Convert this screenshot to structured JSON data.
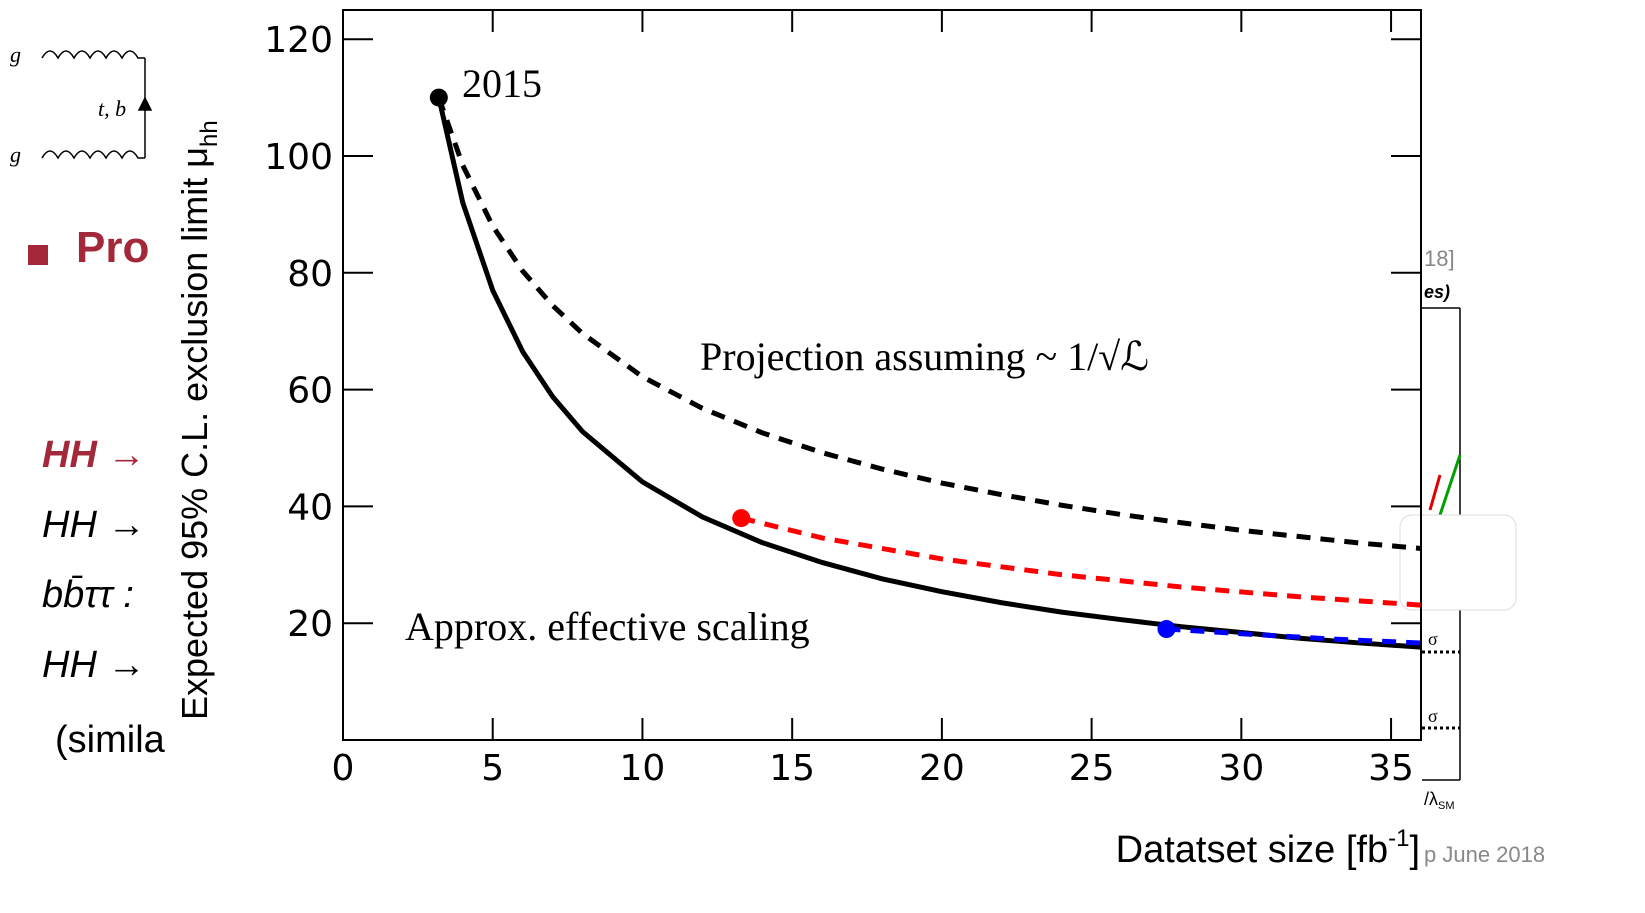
{
  "chart_data": {
    "type": "line",
    "x_label": {
      "text": "Datatset size [fb",
      "sup": "-1",
      "end": "]"
    },
    "y_label": {
      "text": "Expected 95% C.L. exclusion limit μ",
      "sub": "hh"
    },
    "xlim": [
      0,
      36
    ],
    "ylim": [
      0,
      125
    ],
    "xticks": [
      0,
      5,
      10,
      15,
      20,
      25,
      30,
      35
    ],
    "yticks": [
      20,
      40,
      60,
      80,
      100,
      120
    ],
    "series": [
      {
        "color": "#000000",
        "dashed": false,
        "x": [
          3.2,
          4,
          5,
          6,
          7,
          8,
          10,
          12,
          14,
          16,
          18,
          20,
          22,
          24,
          26,
          28,
          30,
          32,
          34,
          36
        ],
        "values": [
          110,
          92.0,
          77.0,
          66.5,
          58.8,
          52.8,
          44.2,
          38.2,
          33.8,
          30.4,
          27.6,
          25.4,
          23.5,
          21.9,
          20.6,
          19.4,
          18.4,
          17.4,
          16.6,
          15.9
        ]
      },
      {
        "color": "#000000",
        "dashed": true,
        "x": [
          3.2,
          4,
          5,
          6,
          7,
          8,
          10,
          12,
          14,
          16,
          18,
          20,
          22,
          24,
          26,
          28,
          30,
          32,
          34,
          36
        ],
        "values": [
          110,
          98.4,
          88.0,
          80.3,
          74.4,
          69.6,
          62.2,
          56.8,
          52.6,
          49.2,
          46.4,
          44.0,
          42.0,
          40.2,
          38.6,
          37.2,
          35.9,
          34.8,
          33.7,
          32.8
        ]
      },
      {
        "color": "#ff0000",
        "dashed": true,
        "x": [
          13.3,
          16,
          20,
          24,
          28,
          32,
          36
        ],
        "values": [
          38,
          34.6,
          31.0,
          28.3,
          26.2,
          24.5,
          23.1
        ]
      },
      {
        "color": "#0000ff",
        "dashed": true,
        "x": [
          27.5,
          30,
          33,
          36
        ],
        "values": [
          19,
          18.2,
          17.3,
          16.6
        ]
      }
    ],
    "markers": [
      {
        "x": 3.2,
        "y": 110,
        "color": "#000000"
      },
      {
        "x": 13.3,
        "y": 38,
        "color": "#ff0000"
      },
      {
        "x": 27.5,
        "y": 19,
        "color": "#0000ff"
      }
    ],
    "annotations": [
      "2015",
      "Projection assuming ~ 1/√ℒ",
      "Approx. effective scaling"
    ]
  },
  "background": {
    "diagram": {
      "g_top": "g",
      "g_bottom": "g",
      "quarks": "t, b"
    },
    "bullet": "Pro",
    "lines": [
      "HH →",
      "HH →",
      "bb̄ττ :",
      "HH →",
      "(simila"
    ],
    "right_fragments": [
      "18]",
      "es)",
      "σ",
      "σ",
      "/λ",
      "SM"
    ],
    "footer": "p June 2018"
  }
}
